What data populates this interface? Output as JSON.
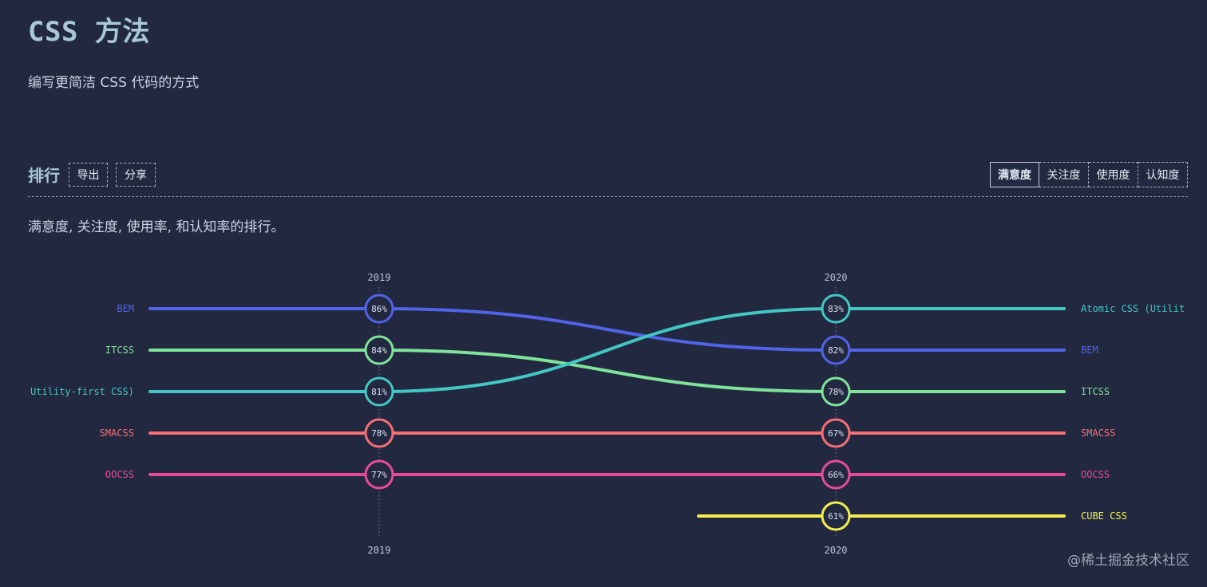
{
  "page": {
    "title": "CSS 方法",
    "subtitle": "编写更简洁 CSS 代码的方式"
  },
  "section": {
    "title": "排行",
    "export_label": "导出",
    "share_label": "分享",
    "tabs": [
      {
        "label": "满意度",
        "active": true
      },
      {
        "label": "关注度",
        "active": false
      },
      {
        "label": "使用度",
        "active": false
      },
      {
        "label": "认知度",
        "active": false
      }
    ],
    "description": "满意度, 关注度, 使用率, 和认知率的排行。"
  },
  "chart_data": {
    "type": "line",
    "x": [
      "2019",
      "2020"
    ],
    "left_labels": [
      "BEM",
      "ITCSS",
      "Utility-first CSS)",
      "SMACSS",
      "OOCSS"
    ],
    "series": [
      {
        "name": "BEM",
        "right_label": "BEM",
        "values": [
          86,
          82
        ],
        "ranks": [
          1,
          2
        ],
        "color": "#5164e8"
      },
      {
        "name": "ITCSS",
        "right_label": "ITCSS",
        "values": [
          84,
          78
        ],
        "ranks": [
          2,
          3
        ],
        "color": "#7fe39a"
      },
      {
        "name": "Utility-first CSS)",
        "right_label": "Atomic CSS (Utilit",
        "values": [
          81,
          83
        ],
        "ranks": [
          3,
          1
        ],
        "color": "#43c7c3"
      },
      {
        "name": "SMACSS",
        "right_label": "SMACSS",
        "values": [
          78,
          67
        ],
        "ranks": [
          4,
          4
        ],
        "color": "#f56f73"
      },
      {
        "name": "OOCSS",
        "right_label": "OOCSS",
        "values": [
          77,
          66
        ],
        "ranks": [
          5,
          5
        ],
        "color": "#e84a9b"
      },
      {
        "name": "CUBE CSS",
        "right_label": "CUBE CSS",
        "values": [
          null,
          61
        ],
        "ranks": [
          null,
          6
        ],
        "color": "#f4ef4f"
      }
    ],
    "value_suffix": "%"
  },
  "watermark": "@稀土掘金技术社区"
}
